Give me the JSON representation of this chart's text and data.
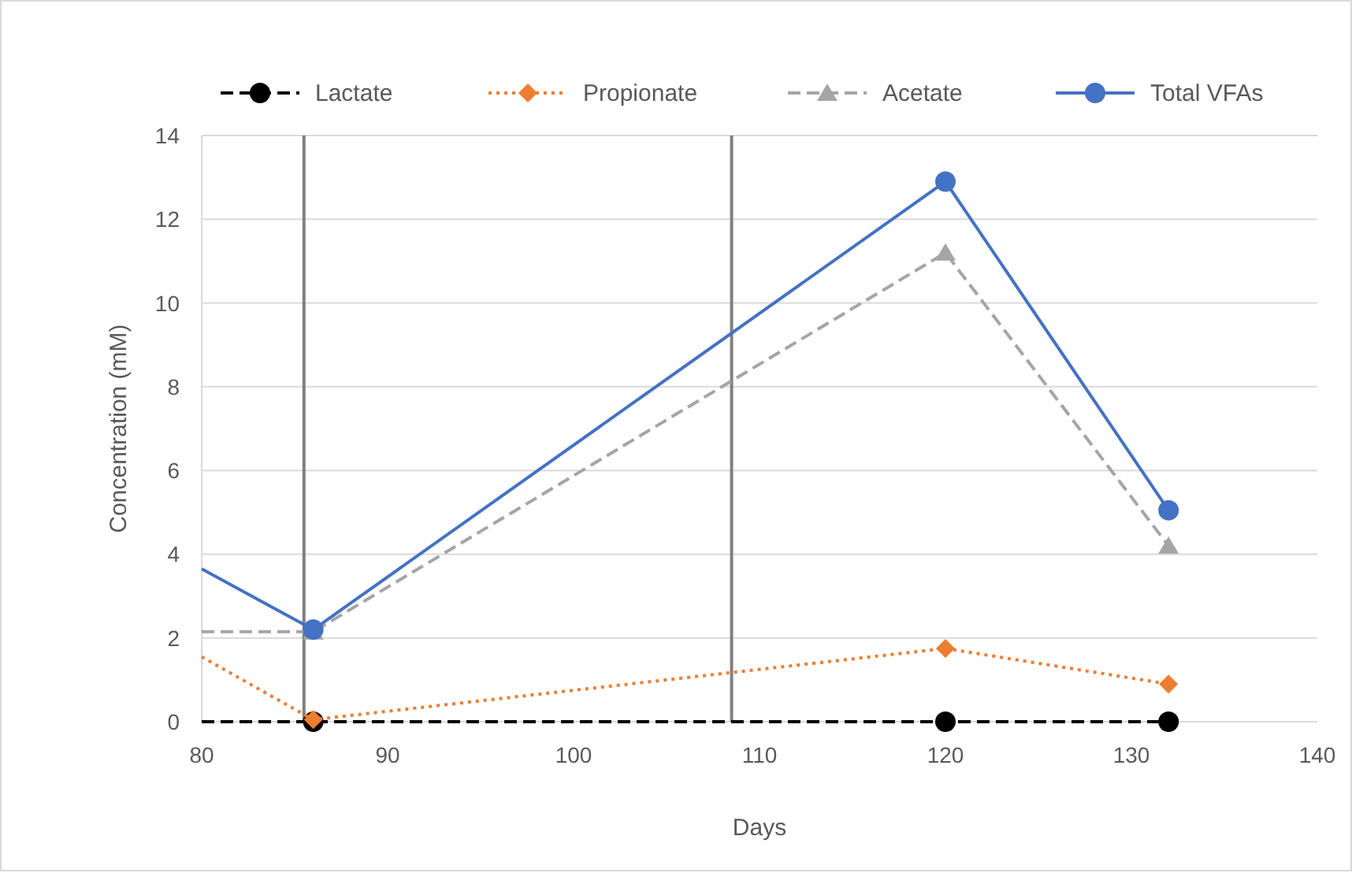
{
  "chart_data": {
    "type": "line",
    "xlabel": "Days",
    "ylabel": "Concentration (mM)",
    "xlim": [
      80,
      140
    ],
    "xticks": [
      80,
      90,
      100,
      110,
      120,
      130,
      140
    ],
    "ylim": [
      0,
      14
    ],
    "yticks": [
      0,
      2,
      4,
      6,
      8,
      10,
      12,
      14
    ],
    "grid": "y",
    "legend": "top",
    "series": [
      {
        "name": "Lactate",
        "color": "#000000",
        "marker": "circle",
        "line_style": "dashed",
        "x": [
          80,
          86,
          120,
          132
        ],
        "values": [
          0,
          0,
          0,
          0
        ]
      },
      {
        "name": "Propionate",
        "color": "#ed7d31",
        "marker": "diamond",
        "line_style": "dotted",
        "x": [
          80,
          86,
          120,
          132
        ],
        "values": [
          1.55,
          0.05,
          1.75,
          0.9
        ]
      },
      {
        "name": "Acetate",
        "color": "#a5a5a5",
        "marker": "triangle",
        "line_style": "dashed",
        "x": [
          80,
          86,
          120,
          132
        ],
        "values": [
          2.15,
          2.15,
          11.2,
          4.2
        ]
      },
      {
        "name": "Total VFAs",
        "color": "#4472c4",
        "marker": "circle",
        "line_style": "solid",
        "x": [
          80,
          86,
          120,
          132
        ],
        "values": [
          3.65,
          2.2,
          12.9,
          5.05
        ]
      }
    ],
    "ref_lines": [
      {
        "axis": "x",
        "value": 85.5,
        "color": "#808080"
      },
      {
        "axis": "x",
        "value": 108.5,
        "color": "#808080"
      }
    ]
  }
}
